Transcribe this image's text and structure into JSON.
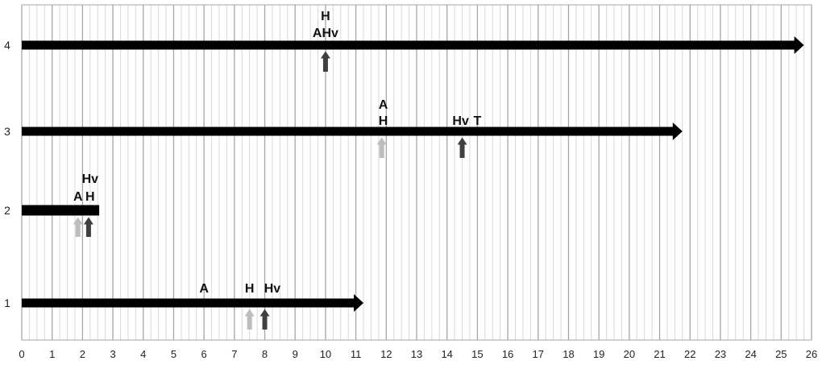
{
  "chart_data": {
    "type": "timeline",
    "title": "",
    "xlabel": "",
    "ylabel": "",
    "xlim": [
      0,
      26
    ],
    "x_ticks": [
      "0",
      "1",
      "2",
      "3",
      "4",
      "5",
      "6",
      "7",
      "8",
      "9",
      "10",
      "11",
      "12",
      "13",
      "14",
      "15",
      "16",
      "17",
      "18",
      "19",
      "20",
      "21",
      "22",
      "23",
      "24",
      "25",
      "26"
    ],
    "grid": "vertical, minor every 0.25, major every 1",
    "colors": {
      "bar": "#000000",
      "arrow_dark": "#404040",
      "arrow_light": "#bdbdbd",
      "grid_major": "#a6a6a6",
      "grid_minor": "#d9d9d9"
    },
    "rows": [
      {
        "label": "1",
        "end": 11.25,
        "text_labels": [
          {
            "text": "A",
            "x": 6.0
          },
          {
            "text": "H",
            "x": 7.5
          },
          {
            "text": "Hv",
            "x": 8.25
          }
        ],
        "markers": [
          {
            "x": 7.5,
            "shade": "light"
          },
          {
            "x": 8.0,
            "shade": "dark"
          }
        ]
      },
      {
        "label": "2",
        "end": 2.55,
        "text_labels": [
          {
            "text": "A",
            "x": 1.85
          },
          {
            "text": "H",
            "x": 2.25
          },
          {
            "text": "Hv",
            "x": 2.25
          }
        ],
        "markers": [
          {
            "x": 1.85,
            "shade": "light"
          },
          {
            "x": 2.2,
            "shade": "dark"
          }
        ]
      },
      {
        "label": "3",
        "end": 21.75,
        "text_labels": [
          {
            "text": "A",
            "x": 11.9
          },
          {
            "text": "H",
            "x": 11.9
          },
          {
            "text": "Hv",
            "x": 14.45
          },
          {
            "text": "T",
            "x": 15.0
          }
        ],
        "markers": [
          {
            "x": 11.85,
            "shade": "light"
          },
          {
            "x": 14.5,
            "shade": "dark"
          }
        ]
      },
      {
        "label": "4",
        "end": 25.75,
        "text_labels": [
          {
            "text": "H",
            "x": 10.0
          },
          {
            "text": "AHv",
            "x": 10.0
          }
        ],
        "markers": [
          {
            "x": 10.0,
            "shade": "dark"
          }
        ]
      }
    ]
  }
}
